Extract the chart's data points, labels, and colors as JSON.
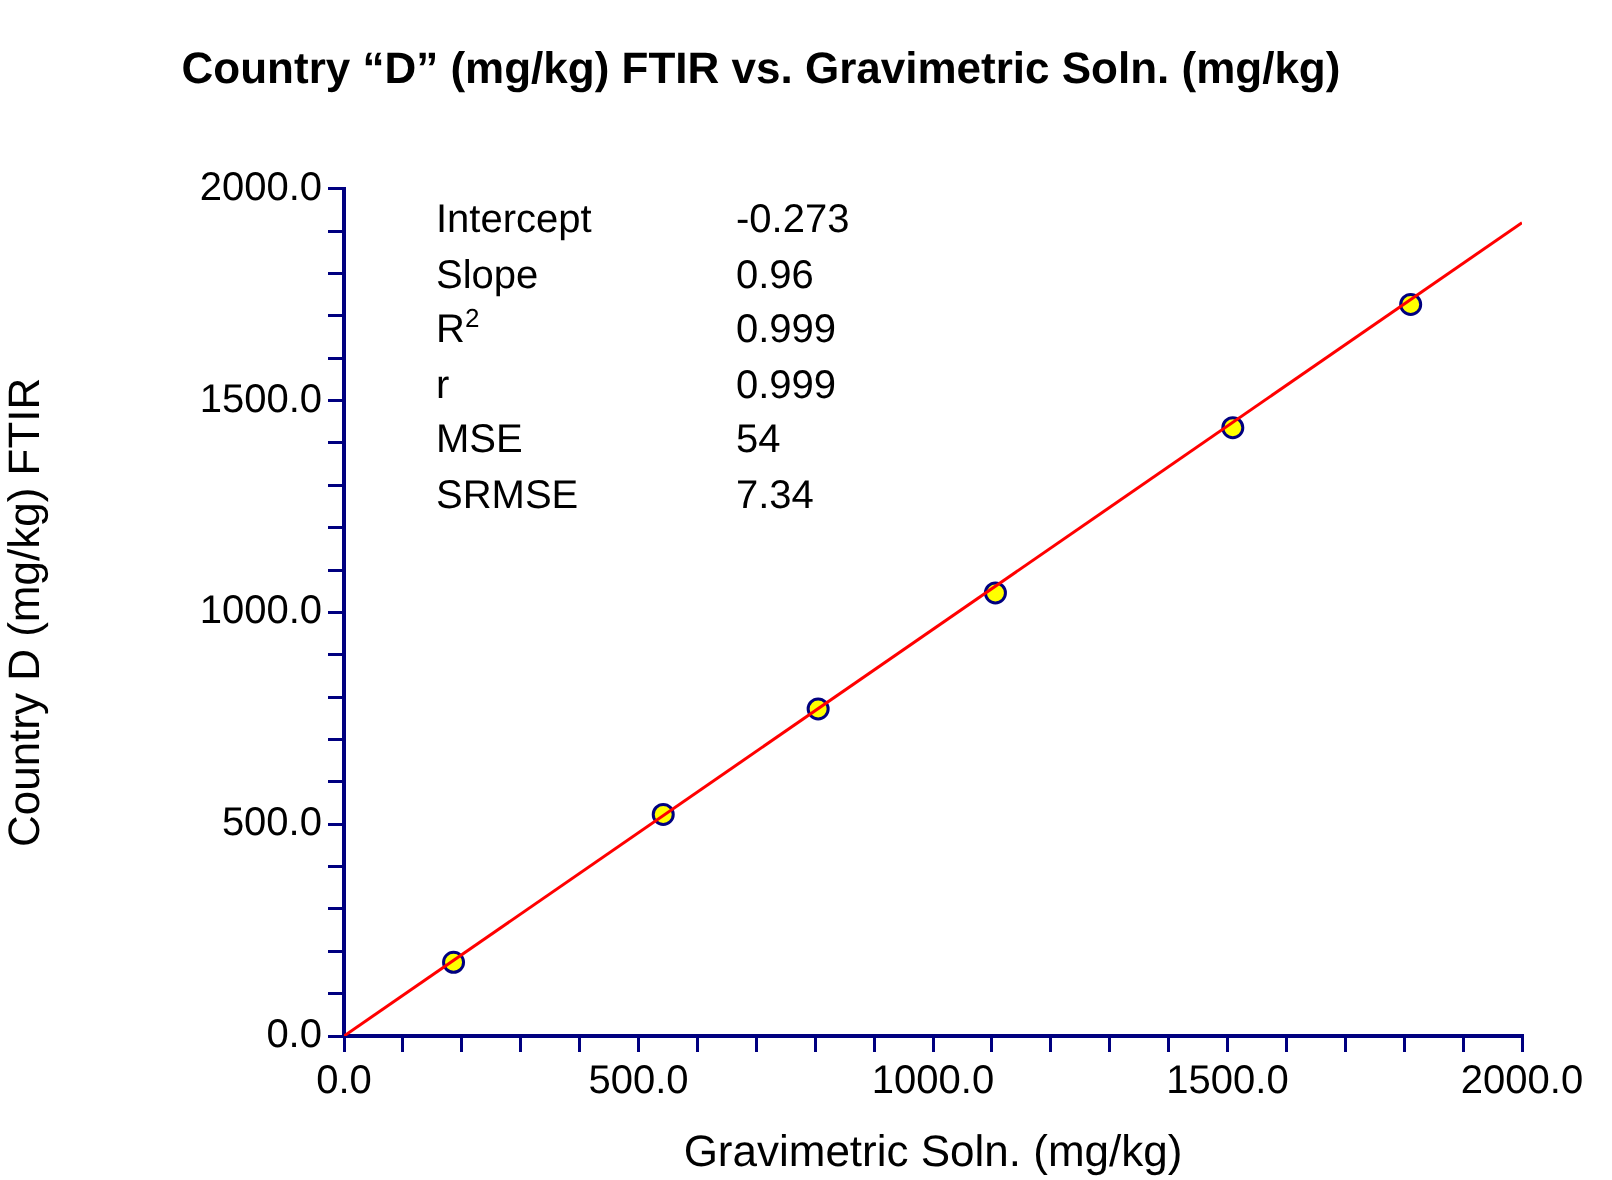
{
  "chart_data": {
    "type": "scatter",
    "title": "Country “D” (mg/kg) FTIR vs. Gravimetric Soln. (mg/kg)",
    "xlabel": "Gravimetric Soln. (mg/kg)",
    "ylabel": "Country D (mg/kg) FTIR",
    "series": [
      {
        "color": "#ffff00",
        "x": [
          186,
          542,
          805,
          1106,
          1509,
          1811
        ],
        "values": [
          174,
          523,
          772,
          1046,
          1436,
          1727
        ],
        "marker": "circle"
      },
      {
        "type": "line",
        "color": "#ff0000",
        "x": [
          0,
          2000
        ],
        "values": [
          0,
          1920
        ],
        "marker": "none",
        "line_style": "solid"
      }
    ],
    "xlim": [
      0,
      2000
    ],
    "ylim": [
      0,
      2000
    ],
    "xticks": [
      {
        "value": 0,
        "label": "0.0"
      },
      {
        "value": 100,
        "label": null
      },
      {
        "value": 200,
        "label": null
      },
      {
        "value": 300,
        "label": null
      },
      {
        "value": 400,
        "label": null
      },
      {
        "value": 500,
        "label": "500.0"
      },
      {
        "value": 600,
        "label": null
      },
      {
        "value": 700,
        "label": null
      },
      {
        "value": 800,
        "label": null
      },
      {
        "value": 900,
        "label": null
      },
      {
        "value": 1000,
        "label": "1000.0"
      },
      {
        "value": 1100,
        "label": null
      },
      {
        "value": 1200,
        "label": null
      },
      {
        "value": 1300,
        "label": null
      },
      {
        "value": 1400,
        "label": null
      },
      {
        "value": 1500,
        "label": "1500.0"
      },
      {
        "value": 1600,
        "label": null
      },
      {
        "value": 1700,
        "label": null
      },
      {
        "value": 1800,
        "label": null
      },
      {
        "value": 1900,
        "label": null
      },
      {
        "value": 2000,
        "label": "2000.0"
      }
    ],
    "yticks": [
      {
        "value": 0,
        "label": "0.0"
      },
      {
        "value": 100,
        "label": null
      },
      {
        "value": 200,
        "label": null
      },
      {
        "value": 300,
        "label": null
      },
      {
        "value": 400,
        "label": null
      },
      {
        "value": 500,
        "label": "500.0"
      },
      {
        "value": 600,
        "label": null
      },
      {
        "value": 700,
        "label": null
      },
      {
        "value": 800,
        "label": null
      },
      {
        "value": 900,
        "label": null
      },
      {
        "value": 1000,
        "label": "1000.0"
      },
      {
        "value": 1100,
        "label": null
      },
      {
        "value": 1200,
        "label": null
      },
      {
        "value": 1300,
        "label": null
      },
      {
        "value": 1400,
        "label": null
      },
      {
        "value": 1500,
        "label": "1500.0"
      },
      {
        "value": 1600,
        "label": null
      },
      {
        "value": 1700,
        "label": null
      },
      {
        "value": 1800,
        "label": null
      },
      {
        "value": 1900,
        "label": null
      },
      {
        "value": 2000,
        "label": "2000.0"
      }
    ],
    "annotations": [
      "Intercept",
      "-0.273",
      "Slope",
      "0.96",
      "R$^{2}$",
      "0.999",
      "r",
      "0.999",
      "MSE",
      "54",
      "SRMSE",
      "7.34"
    ],
    "grid": false,
    "legend": false
  }
}
